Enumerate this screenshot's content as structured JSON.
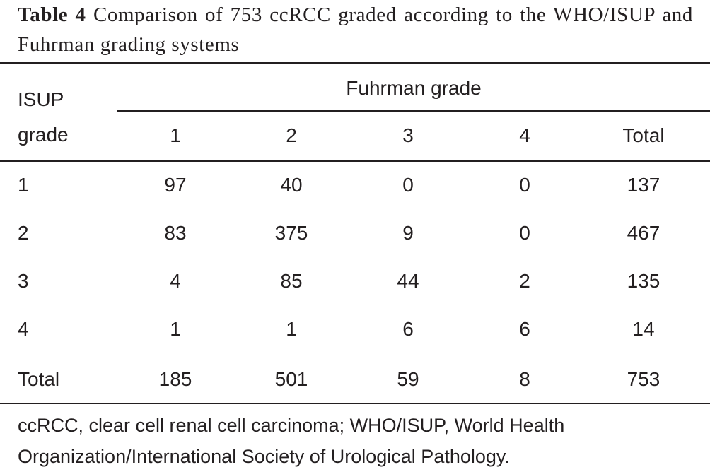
{
  "caption": {
    "label": "Table 4",
    "text": "Comparison of 753 ccRCC graded according to the WHO/ISUP and Fuhrman grading systems"
  },
  "table": {
    "row_header": "ISUP grade",
    "group_header": "Fuhrman grade",
    "columns": [
      "1",
      "2",
      "3",
      "4",
      "Total"
    ],
    "rows": [
      [
        "1",
        97,
        40,
        0,
        0,
        137
      ],
      [
        "2",
        83,
        375,
        9,
        0,
        467
      ],
      [
        "3",
        4,
        85,
        44,
        2,
        135
      ],
      [
        "4",
        1,
        1,
        6,
        6,
        14
      ],
      [
        "Total",
        185,
        501,
        59,
        8,
        753
      ]
    ]
  },
  "footnote": "ccRCC, clear cell renal cell carcinoma; WHO/ISUP, World Health Organization/International Society of Urological Pathology."
}
